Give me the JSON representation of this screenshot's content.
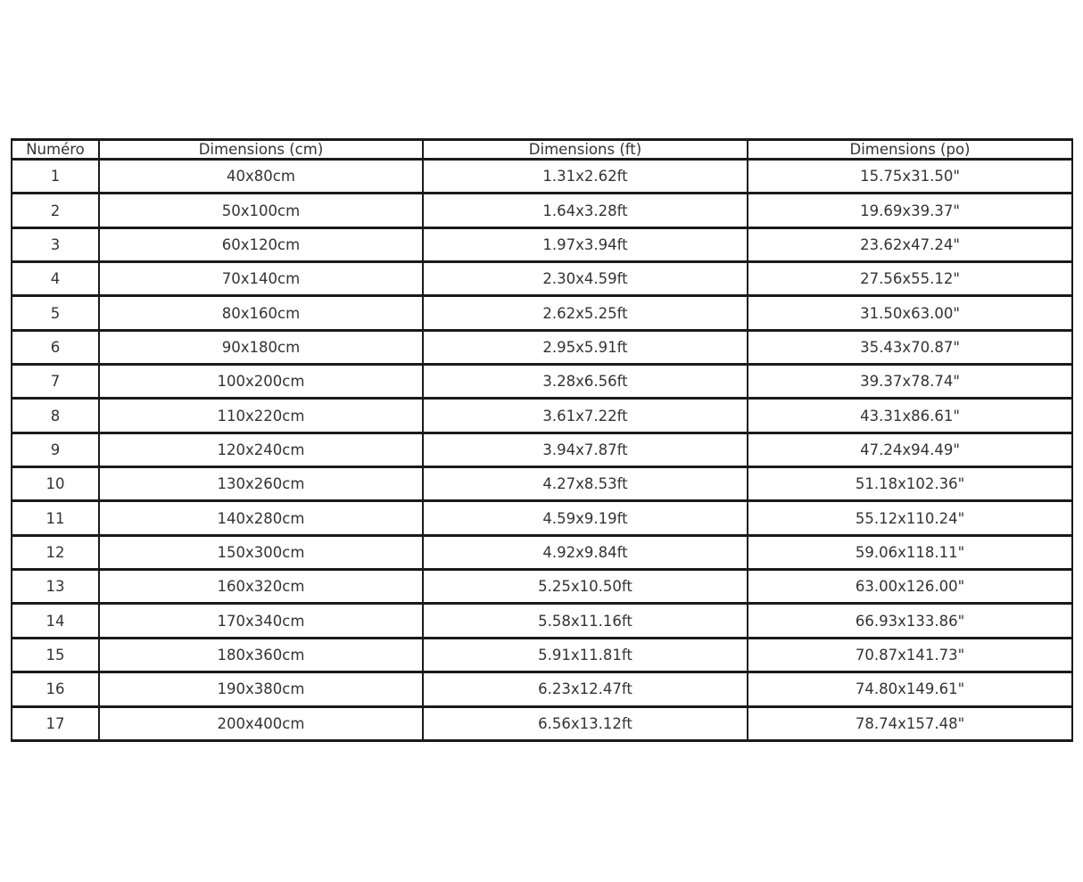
{
  "page": {
    "background": "#ffffff",
    "border_color": "#1a1a1a",
    "text_color": "#333333"
  },
  "chart_data": {
    "type": "table",
    "title": "",
    "columns": [
      "Numéro",
      "Dimensions (cm)",
      "Dimensions (ft)",
      "Dimensions (po)"
    ],
    "rows": [
      [
        "1",
        "40x80cm",
        "1.31x2.62ft",
        "15.75x31.50\""
      ],
      [
        "2",
        "50x100cm",
        "1.64x3.28ft",
        "19.69x39.37\""
      ],
      [
        "3",
        "60x120cm",
        "1.97x3.94ft",
        "23.62x47.24\""
      ],
      [
        "4",
        "70x140cm",
        "2.30x4.59ft",
        "27.56x55.12\""
      ],
      [
        "5",
        "80x160cm",
        "2.62x5.25ft",
        "31.50x63.00\""
      ],
      [
        "6",
        "90x180cm",
        "2.95x5.91ft",
        "35.43x70.87\""
      ],
      [
        "7",
        "100x200cm",
        "3.28x6.56ft",
        "39.37x78.74\""
      ],
      [
        "8",
        "110x220cm",
        "3.61x7.22ft",
        "43.31x86.61\""
      ],
      [
        "9",
        "120x240cm",
        "3.94x7.87ft",
        "47.24x94.49\""
      ],
      [
        "10",
        "130x260cm",
        "4.27x8.53ft",
        "51.18x102.36\""
      ],
      [
        "11",
        "140x280cm",
        "4.59x9.19ft",
        "55.12x110.24\""
      ],
      [
        "12",
        "150x300cm",
        "4.92x9.84ft",
        "59.06x118.11\""
      ],
      [
        "13",
        "160x320cm",
        "5.25x10.50ft",
        "63.00x126.00\""
      ],
      [
        "14",
        "170x340cm",
        "5.58x11.16ft",
        "66.93x133.86\""
      ],
      [
        "15",
        "180x360cm",
        "5.91x11.81ft",
        "70.87x141.73\""
      ],
      [
        "16",
        "190x380cm",
        "6.23x12.47ft",
        "74.80x149.61\""
      ],
      [
        "17",
        "200x400cm",
        "6.56x13.12ft",
        "78.74x157.48\""
      ]
    ]
  }
}
